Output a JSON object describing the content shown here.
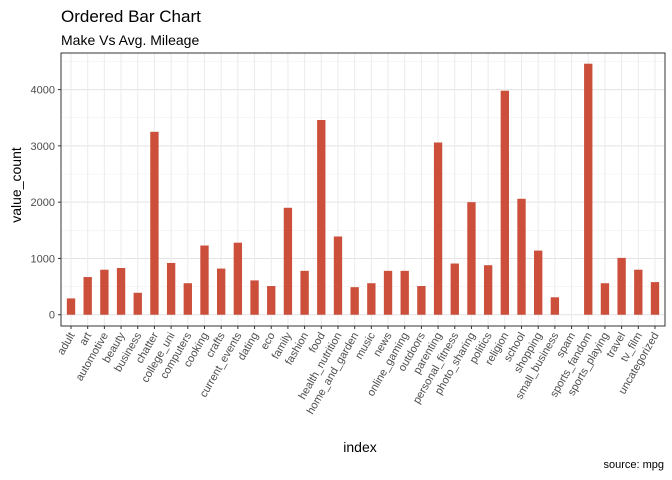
{
  "chart_data": {
    "type": "bar",
    "title": "Ordered Bar Chart",
    "subtitle": "Make Vs Avg. Mileage",
    "caption": "source: mpg",
    "xlabel": "index",
    "ylabel": "value_count",
    "ylim": [
      -200,
      4650
    ],
    "yticks": [
      0,
      1000,
      2000,
      3000,
      4000
    ],
    "bar_color": "#CB4F3B",
    "grid": true,
    "categories": [
      "adult",
      "art",
      "automotive",
      "beauty",
      "business",
      "chatter",
      "college_uni",
      "computers",
      "cooking",
      "crafts",
      "current_events",
      "dating",
      "eco",
      "family",
      "fashion",
      "food",
      "health_nutrition",
      "home_and_garden",
      "music",
      "news",
      "online_gaming",
      "outdoors",
      "parenting",
      "personal_fitness",
      "photo_sharing",
      "politics",
      "religion",
      "school",
      "shopping",
      "small_business",
      "spam",
      "sports_fandom",
      "sports_playing",
      "travel",
      "tv_film",
      "uncategorized"
    ],
    "values": [
      290,
      670,
      800,
      830,
      390,
      3250,
      920,
      560,
      1230,
      820,
      1280,
      610,
      510,
      1900,
      780,
      3460,
      1390,
      490,
      560,
      780,
      780,
      510,
      3060,
      910,
      2000,
      880,
      3980,
      2060,
      1140,
      310,
      0,
      4460,
      560,
      1010,
      800,
      580
    ]
  }
}
